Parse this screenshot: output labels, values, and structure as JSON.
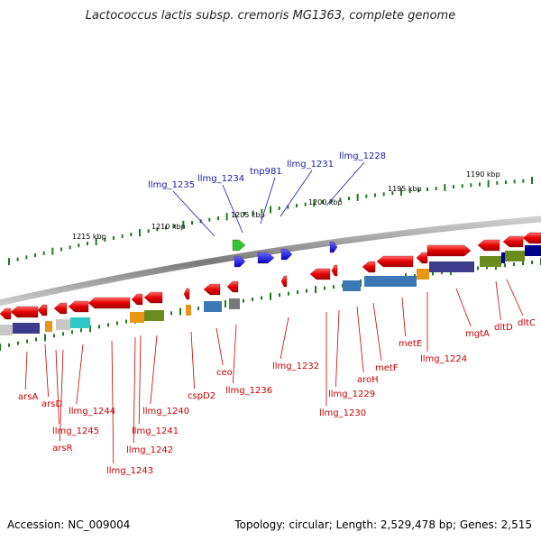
{
  "title": "Lactococcus lactis subsp. cremoris MG1363, complete genome",
  "footer": {
    "accession": "Accession: NC_009004",
    "summary": "Topology: circular; Length: 2,529,478 bp; Genes: 2,515"
  },
  "kbp_labels": [
    "1215 kbp",
    "1210 kbp",
    "1205 kbp",
    "1200 kbp",
    "1195 kbp",
    "1190 kbp"
  ],
  "top_labels": [
    "llmg_1235",
    "llmg_1234",
    "tnp981",
    "llmg_1231",
    "llmg_1228"
  ],
  "bottom_labels": [
    "arsA",
    "arsD",
    "llmg_1245",
    "arsR",
    "llmg_1244",
    "llmg_1243",
    "llmg_1242",
    "llmg_1241",
    "llmg_1240",
    "cspD2",
    "ceo",
    "llmg_1236",
    "llmg_1232",
    "llmg_1229",
    "llmg_1230",
    "aroH",
    "metF",
    "metE",
    "llmg_1224",
    "mgtA",
    "dltD",
    "dltC"
  ],
  "colors": {
    "forward_gene": "#e60000",
    "reverse_gene": "#e60000",
    "mobile_element": "#1414ff",
    "backbone": "#8c8c8c",
    "tick": "#1f7a1f",
    "label_top": "#1a1aa8",
    "label_bottom": "#c80000"
  }
}
